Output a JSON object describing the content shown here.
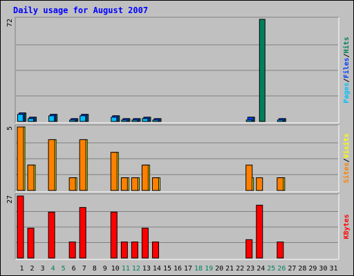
{
  "title": "Daily usage for August 2007",
  "colors": {
    "background": "#c0c0c0",
    "hits": "#00805c",
    "files": "#0040ff",
    "pages": "#00c0ff",
    "visits": "#ffff00",
    "sites": "#ff8000",
    "kbytes": "#ff0000",
    "title": "#0000ff",
    "weekend_label": "#00805c",
    "weekday_label": "#000000"
  },
  "chart_data": [
    {
      "type": "bar",
      "panel": "top",
      "ylabel_parts": [
        "Pages",
        "Files",
        "Hits"
      ],
      "ymax": 72,
      "max_label": "72",
      "categories": [
        "1",
        "2",
        "3",
        "4",
        "5",
        "6",
        "7",
        "8",
        "9",
        "10",
        "11",
        "12",
        "13",
        "14",
        "15",
        "16",
        "17",
        "18",
        "19",
        "20",
        "21",
        "22",
        "23",
        "24",
        "25",
        "26",
        "27",
        "28",
        "29",
        "30",
        "31"
      ],
      "series": [
        {
          "name": "Hits",
          "values": [
            6,
            3,
            0,
            5,
            0,
            2,
            5,
            0,
            0,
            4,
            2,
            2,
            3,
            2,
            0,
            0,
            0,
            0,
            0,
            0,
            0,
            0,
            3,
            72,
            0,
            2,
            0,
            0,
            0,
            0,
            0
          ]
        },
        {
          "name": "Files",
          "values": [
            6,
            3,
            0,
            5,
            0,
            2,
            5,
            0,
            0,
            4,
            2,
            2,
            3,
            2,
            0,
            0,
            0,
            0,
            0,
            0,
            0,
            0,
            3,
            0,
            0,
            2,
            0,
            0,
            0,
            0,
            0
          ]
        },
        {
          "name": "Pages",
          "values": [
            5,
            2,
            0,
            4,
            0,
            1,
            4,
            0,
            0,
            3,
            1,
            1,
            2,
            1,
            0,
            0,
            0,
            0,
            0,
            0,
            0,
            0,
            1,
            0,
            0,
            1,
            0,
            0,
            0,
            0,
            0
          ]
        }
      ]
    },
    {
      "type": "bar",
      "panel": "middle",
      "ylabel_parts": [
        "Sites",
        "Visits"
      ],
      "ymax": 5,
      "max_label": "5",
      "categories": [
        "1",
        "2",
        "3",
        "4",
        "5",
        "6",
        "7",
        "8",
        "9",
        "10",
        "11",
        "12",
        "13",
        "14",
        "15",
        "16",
        "17",
        "18",
        "19",
        "20",
        "21",
        "22",
        "23",
        "24",
        "25",
        "26",
        "27",
        "28",
        "29",
        "30",
        "31"
      ],
      "series": [
        {
          "name": "Visits",
          "values": [
            5,
            2,
            0,
            4,
            0,
            1,
            4,
            0,
            0,
            3,
            1,
            1,
            2,
            1,
            0,
            0,
            0,
            0,
            0,
            0,
            0,
            0,
            1,
            0,
            0,
            1,
            0,
            0,
            0,
            0,
            0
          ]
        },
        {
          "name": "Sites",
          "values": [
            5,
            2,
            0,
            4,
            0,
            1,
            4,
            0,
            0,
            3,
            1,
            1,
            2,
            1,
            0,
            0,
            0,
            0,
            0,
            0,
            0,
            0,
            2,
            1,
            0,
            1,
            0,
            0,
            0,
            0,
            0
          ]
        }
      ]
    },
    {
      "type": "bar",
      "panel": "bottom",
      "ylabel_parts": [
        "KBytes"
      ],
      "ymax": 27,
      "max_label": "27",
      "categories": [
        "1",
        "2",
        "3",
        "4",
        "5",
        "6",
        "7",
        "8",
        "9",
        "10",
        "11",
        "12",
        "13",
        "14",
        "15",
        "16",
        "17",
        "18",
        "19",
        "20",
        "21",
        "22",
        "23",
        "24",
        "25",
        "26",
        "27",
        "28",
        "29",
        "30",
        "31"
      ],
      "series": [
        {
          "name": "KBytes",
          "values": [
            27,
            13,
            0,
            20,
            0,
            7,
            22,
            0,
            0,
            20,
            7,
            7,
            13,
            7,
            0,
            0,
            0,
            0,
            0,
            0,
            0,
            0,
            8,
            23,
            0,
            7,
            0,
            0,
            0,
            0,
            0
          ]
        }
      ]
    }
  ],
  "x_labels": [
    "1",
    "2",
    "3",
    "4",
    "5",
    "6",
    "7",
    "8",
    "9",
    "10",
    "11",
    "12",
    "13",
    "14",
    "15",
    "16",
    "17",
    "18",
    "19",
    "20",
    "21",
    "22",
    "23",
    "24",
    "25",
    "26",
    "27",
    "28",
    "29",
    "30",
    "31"
  ],
  "weekend_days": [
    4,
    5,
    11,
    12,
    18,
    19,
    25,
    26
  ]
}
